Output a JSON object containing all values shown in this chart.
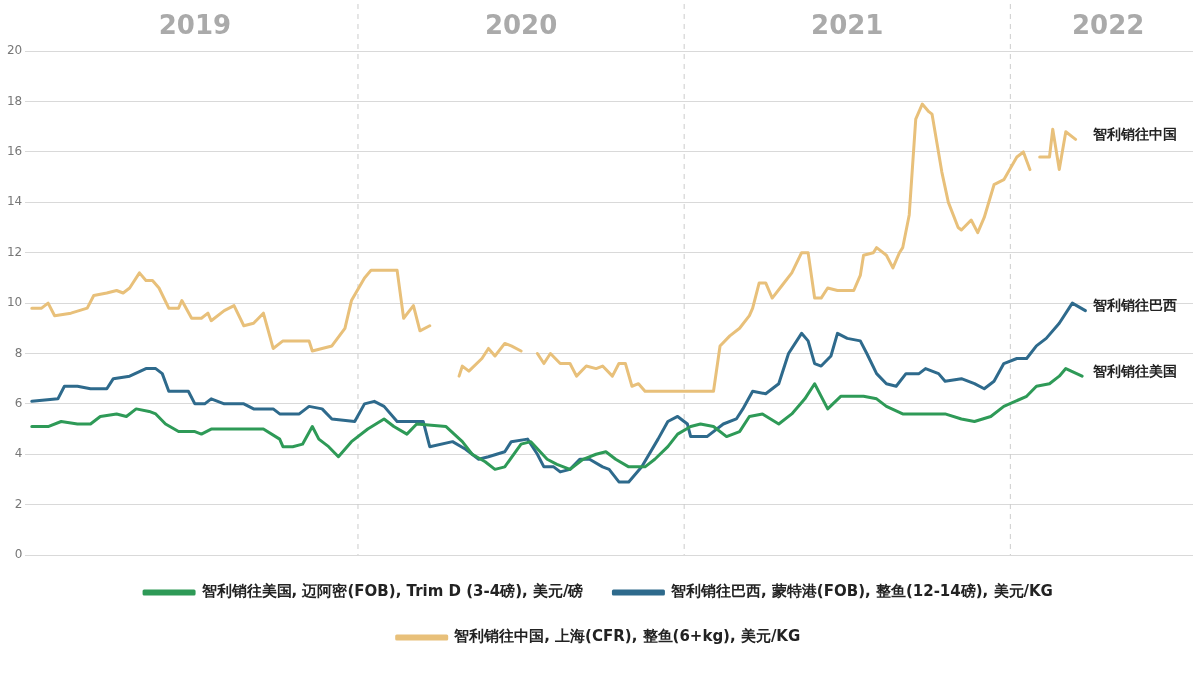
{
  "chart_data": {
    "type": "line",
    "xlim": [
      2018.98,
      2022.56
    ],
    "xticks": [
      {
        "value": 2019.5,
        "label": "2019"
      },
      {
        "value": 2020.5,
        "label": "2020"
      },
      {
        "value": 2021.5,
        "label": "2021"
      },
      {
        "value": 2022.3,
        "label": "2022"
      }
    ],
    "ylim": [
      0,
      20
    ],
    "yticks": [
      0,
      2,
      4,
      6,
      8,
      10,
      12,
      14,
      16,
      18,
      20
    ],
    "grid": "y",
    "legend": "bottom",
    "ref_lines": [
      {
        "axis": "x",
        "value": 2020,
        "line_style": "dashed",
        "color": "#cccccc"
      },
      {
        "axis": "x",
        "value": 2021,
        "line_style": "dashed",
        "color": "#cccccc"
      },
      {
        "axis": "x",
        "value": 2022,
        "line_style": "dashed",
        "color": "#cccccc"
      }
    ],
    "annotations": [
      "智利销往中国",
      "智利销往巴西",
      "智利销往美国"
    ],
    "series": [
      {
        "name": "智利销往美国, 迈阿密(FOB), Trim D (3-4磅), 美元/磅",
        "color": "#2e9a57",
        "x": [
          2019.0,
          2019.05,
          2019.09,
          2019.14,
          2019.18,
          2019.21,
          2019.26,
          2019.29,
          2019.32,
          2019.36,
          2019.38,
          2019.41,
          2019.45,
          2019.5,
          2019.52,
          2019.55,
          2019.62,
          2019.71,
          2019.76,
          2019.77,
          2019.8,
          2019.83,
          2019.86,
          2019.88,
          2019.91,
          2019.94,
          2019.98,
          2020.03,
          2020.08,
          2020.11,
          2020.15,
          2020.18,
          2020.27,
          2020.32,
          2020.35,
          2020.39,
          2020.42,
          2020.45,
          2020.5,
          2020.53,
          2020.58,
          2020.61,
          2020.65,
          2020.69,
          2020.73,
          2020.76,
          2020.79,
          2020.83,
          2020.88,
          2020.91,
          2020.95,
          2020.98,
          2021.02,
          2021.05,
          2021.09,
          2021.13,
          2021.17,
          2021.2,
          2021.24,
          2021.29,
          2021.33,
          2021.37,
          2021.4,
          2021.44,
          2021.48,
          2021.55,
          2021.59,
          2021.62,
          2021.67,
          2021.74,
          2021.8,
          2021.85,
          2021.89,
          2021.94,
          2021.98,
          2022.05,
          2022.08,
          2022.12,
          2022.15,
          2022.17,
          2022.22
        ],
        "values": [
          5.1,
          5.1,
          5.3,
          5.2,
          5.2,
          5.5,
          5.6,
          5.5,
          5.8,
          5.7,
          5.6,
          5.2,
          4.9,
          4.9,
          4.8,
          5.0,
          5.0,
          5.0,
          4.6,
          4.3,
          4.3,
          4.4,
          5.1,
          4.6,
          4.3,
          3.9,
          4.5,
          5.0,
          5.4,
          5.1,
          4.8,
          5.2,
          5.1,
          4.5,
          4.0,
          3.7,
          3.4,
          3.5,
          4.4,
          4.5,
          3.8,
          3.6,
          3.4,
          3.8,
          4.0,
          4.1,
          3.8,
          3.5,
          3.5,
          3.8,
          4.3,
          4.8,
          5.1,
          5.2,
          5.1,
          4.7,
          4.9,
          5.5,
          5.6,
          5.2,
          5.6,
          6.2,
          6.8,
          5.8,
          6.3,
          6.3,
          6.2,
          5.9,
          5.6,
          5.6,
          5.6,
          5.4,
          5.3,
          5.5,
          5.9,
          6.3,
          6.7,
          6.8,
          7.1,
          7.4,
          7.1
        ]
      },
      {
        "name": "智利销往巴西, 蒙特港(FOB), 整鱼(12-14磅), 美元/KG",
        "color": "#2e6a8c",
        "x": [
          2019.0,
          2019.08,
          2019.1,
          2019.14,
          2019.18,
          2019.23,
          2019.25,
          2019.3,
          2019.35,
          2019.38,
          2019.4,
          2019.42,
          2019.48,
          2019.5,
          2019.53,
          2019.55,
          2019.59,
          2019.65,
          2019.68,
          2019.74,
          2019.76,
          2019.82,
          2019.85,
          2019.89,
          2019.92,
          2019.99,
          2020.02,
          2020.05,
          2020.08,
          2020.12,
          2020.2,
          2020.22,
          2020.29,
          2020.33,
          2020.37,
          2020.4,
          2020.45,
          2020.47,
          2020.52,
          2020.55,
          2020.57,
          2020.6,
          2020.62,
          2020.65,
          2020.68,
          2020.71,
          2020.75,
          2020.77,
          2020.8,
          2020.83,
          2020.87,
          2020.92,
          2020.95,
          2020.98,
          2021.01,
          2021.02,
          2021.07,
          2021.12,
          2021.16,
          2021.18,
          2021.21,
          2021.25,
          2021.29,
          2021.32,
          2021.36,
          2021.38,
          2021.4,
          2021.42,
          2021.45,
          2021.47,
          2021.5,
          2021.54,
          2021.56,
          2021.59,
          2021.62,
          2021.65,
          2021.68,
          2021.72,
          2021.74,
          2021.78,
          2021.8,
          2021.85,
          2021.89,
          2021.92,
          2021.95,
          2021.98,
          2022.02,
          2022.05,
          2022.08,
          2022.11,
          2022.15,
          2022.19,
          2022.23
        ],
        "values": [
          6.1,
          6.2,
          6.7,
          6.7,
          6.6,
          6.6,
          7.0,
          7.1,
          7.4,
          7.4,
          7.2,
          6.5,
          6.5,
          6.0,
          6.0,
          6.2,
          6.0,
          6.0,
          5.8,
          5.8,
          5.6,
          5.6,
          5.9,
          5.8,
          5.4,
          5.3,
          6.0,
          6.1,
          5.9,
          5.3,
          5.3,
          4.3,
          4.5,
          4.2,
          3.8,
          3.9,
          4.1,
          4.5,
          4.6,
          4.0,
          3.5,
          3.5,
          3.3,
          3.4,
          3.8,
          3.8,
          3.5,
          3.4,
          2.9,
          2.9,
          3.5,
          4.6,
          5.3,
          5.5,
          5.2,
          4.7,
          4.7,
          5.2,
          5.4,
          5.8,
          6.5,
          6.4,
          6.8,
          8.0,
          8.8,
          8.5,
          7.6,
          7.5,
          7.9,
          8.8,
          8.6,
          8.5,
          8.0,
          7.2,
          6.8,
          6.7,
          7.2,
          7.2,
          7.4,
          7.2,
          6.9,
          7.0,
          6.8,
          6.6,
          6.9,
          7.6,
          7.8,
          7.8,
          8.3,
          8.6,
          9.2,
          10.0,
          9.7
        ]
      },
      {
        "name": "智利销往中国, 上海(CFR), 整鱼(6+kg), 美元/KG",
        "color": "#e8c07a",
        "x": [
          2019.0,
          2019.03,
          2019.05,
          2019.07,
          2019.12,
          2019.17,
          2019.19,
          2019.23,
          2019.26,
          2019.28,
          2019.3,
          2019.33,
          2019.35,
          2019.37,
          2019.39,
          2019.42,
          2019.45,
          2019.46,
          2019.49,
          2019.52,
          2019.54,
          2019.55,
          2019.59,
          2019.62,
          2019.65,
          2019.68,
          2019.71,
          2019.74,
          2019.77,
          2019.82,
          2019.85,
          2019.86,
          2019.89,
          2019.92,
          2019.96,
          2019.98,
          2020.02,
          2020.04,
          2020.09,
          2020.12,
          2020.14,
          2020.17,
          2020.19,
          2020.22,
          2020.3,
          2020.31,
          2020.32,
          2020.34,
          2020.38,
          2020.4,
          2020.42,
          2020.45,
          2020.47,
          2020.5,
          2020.52,
          2020.55,
          2020.57,
          2020.59,
          2020.62,
          2020.65,
          2020.67,
          2020.7,
          2020.73,
          2020.75,
          2020.78,
          2020.8,
          2020.82,
          2020.84,
          2020.86,
          2020.88,
          2021.02,
          2021.09,
          2021.11,
          2021.14,
          2021.17,
          2021.2,
          2021.21,
          2021.23,
          2021.25,
          2021.27,
          2021.3,
          2021.33,
          2021.36,
          2021.38,
          2021.4,
          2021.42,
          2021.44,
          2021.47,
          2021.52,
          2021.54,
          2021.55,
          2021.58,
          2021.59,
          2021.62,
          2021.64,
          2021.66,
          2021.67,
          2021.69,
          2021.71,
          2021.73,
          2021.75,
          2021.76,
          2021.79,
          2021.81,
          2021.84,
          2021.85,
          2021.88,
          2021.9,
          2021.92,
          2021.95,
          2021.98,
          2022.02,
          2022.04,
          2022.06,
          2022.07,
          2022.09,
          2022.12,
          2022.13,
          2022.15,
          2022.17,
          2022.2
        ],
        "values": [
          9.8,
          9.8,
          10.0,
          9.5,
          9.6,
          9.8,
          10.3,
          10.4,
          10.5,
          10.4,
          10.6,
          11.2,
          10.9,
          10.9,
          10.6,
          9.8,
          9.8,
          10.1,
          9.4,
          9.4,
          9.6,
          9.3,
          9.7,
          9.9,
          9.1,
          9.2,
          9.6,
          8.2,
          8.5,
          8.5,
          8.5,
          8.1,
          8.2,
          8.3,
          9.0,
          10.1,
          11.0,
          11.3,
          11.3,
          11.3,
          9.4,
          9.9,
          8.9,
          9.1,
          null,
          7.1,
          7.5,
          7.3,
          7.8,
          8.2,
          7.9,
          8.4,
          8.3,
          8.1,
          null,
          8.0,
          7.6,
          8.0,
          7.6,
          7.6,
          7.1,
          7.5,
          7.4,
          7.5,
          7.1,
          7.6,
          7.6,
          6.7,
          6.8,
          6.5,
          6.5,
          6.5,
          8.3,
          8.7,
          9.0,
          9.5,
          9.8,
          10.8,
          10.8,
          10.2,
          10.7,
          11.2,
          12.0,
          12.0,
          10.2,
          10.2,
          10.6,
          10.5,
          10.5,
          11.1,
          11.9,
          12.0,
          12.2,
          11.9,
          11.4,
          12.0,
          12.2,
          13.5,
          17.3,
          17.9,
          17.6,
          17.5,
          15.2,
          14.0,
          13.0,
          12.9,
          13.3,
          12.8,
          13.4,
          14.7,
          14.9,
          15.8,
          16.0,
          15.3,
          null,
          15.8,
          15.8,
          16.9,
          15.3,
          16.8,
          16.5
        ]
      }
    ]
  }
}
